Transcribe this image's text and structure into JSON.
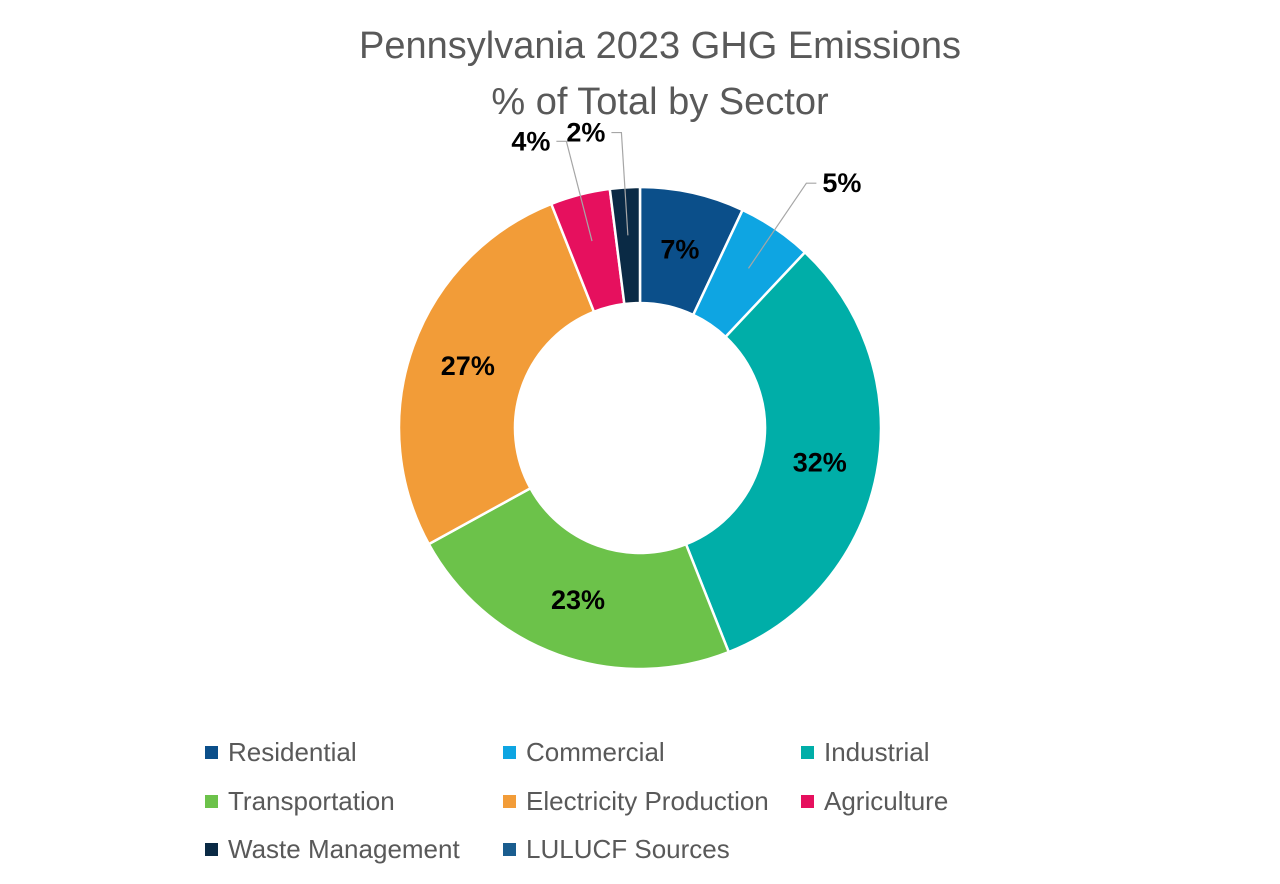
{
  "chart_data": {
    "type": "pie",
    "donut": true,
    "title": [
      "Pennsylvania 2023 GHG Emissions",
      "% of Total by Sector"
    ],
    "slices": [
      {
        "name": "Residential",
        "value": 7,
        "label": "7%",
        "color": "#0b4f8a"
      },
      {
        "name": "Commercial",
        "value": 5,
        "label": "5%",
        "color": "#0ea5e2"
      },
      {
        "name": "Industrial",
        "value": 32,
        "label": "32%",
        "color": "#00aea8"
      },
      {
        "name": "Transportation",
        "value": 23,
        "label": "23%",
        "color": "#6cc24a"
      },
      {
        "name": "Electricity Production",
        "value": 27,
        "label": "27%",
        "color": "#f29c38"
      },
      {
        "name": "Agriculture",
        "value": 4,
        "label": "4%",
        "color": "#e6105e"
      },
      {
        "name": "Waste Management",
        "value": 2,
        "label": "2%",
        "color": "#0a2a45"
      },
      {
        "name": "LULUCF Sources",
        "value": 0,
        "label": "",
        "color": "#1a5d8f"
      }
    ],
    "legend_position": "bottom"
  }
}
